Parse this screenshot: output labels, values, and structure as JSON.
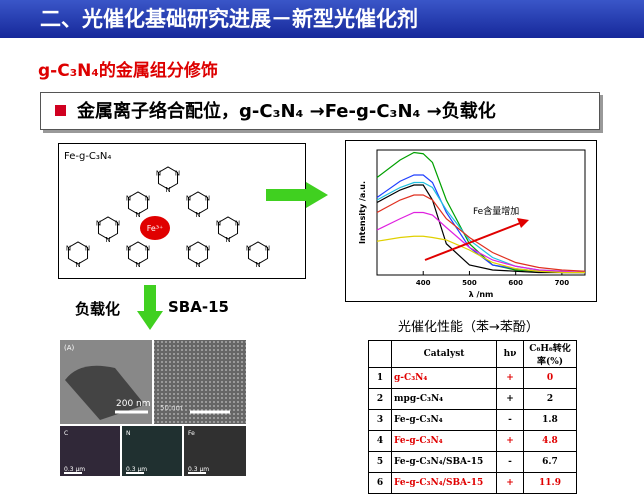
{
  "header": {
    "title": "二、光催化基础研究进展－新型光催化剂"
  },
  "subtitle": "g-C₃N₄的金属组分修饰",
  "bullet": {
    "text": "金属离子络合配位，g-C₃N₄ →Fe-g-C₃N₄ →负载化"
  },
  "structure": {
    "label": "Fe-g-C₃N₄",
    "center": "Fe³⁺",
    "atom": "N"
  },
  "step": {
    "left": "负载化",
    "right": "SBA-15"
  },
  "tem": {
    "panel": "(A)",
    "scale1": "200 nm",
    "scale2": "50 nm",
    "maps": [
      "C",
      "N",
      "Fe"
    ],
    "scale3": "0.3 μm"
  },
  "spectrum": {
    "type": "line",
    "ylabel": "Intensity /a.u.",
    "xlabel": "λ /nm",
    "annotation": "Fe含量增加",
    "x": [
      300,
      350,
      380,
      400,
      420,
      450,
      500,
      550,
      600,
      650,
      700,
      750
    ],
    "xlim": [
      300,
      750
    ],
    "ylim": [
      0,
      1
    ],
    "xticks": [
      400,
      500,
      600,
      700
    ],
    "series": [
      {
        "color": "#00a000",
        "values": [
          0.78,
          0.92,
          0.98,
          0.97,
          0.9,
          0.6,
          0.25,
          0.08,
          0.04,
          0.03,
          0.02,
          0.02
        ]
      },
      {
        "color": "#2040ff",
        "values": [
          0.62,
          0.75,
          0.8,
          0.8,
          0.74,
          0.5,
          0.22,
          0.08,
          0.05,
          0.03,
          0.02,
          0.02
        ]
      },
      {
        "color": "#20c0e0",
        "values": [
          0.6,
          0.7,
          0.74,
          0.74,
          0.7,
          0.52,
          0.28,
          0.14,
          0.07,
          0.04,
          0.03,
          0.02
        ]
      },
      {
        "color": "#000000",
        "values": [
          0.58,
          0.68,
          0.72,
          0.72,
          0.6,
          0.25,
          0.08,
          0.04,
          0.03,
          0.02,
          0.02,
          0.02
        ]
      },
      {
        "color": "#e03020",
        "values": [
          0.5,
          0.6,
          0.64,
          0.64,
          0.6,
          0.45,
          0.3,
          0.18,
          0.1,
          0.06,
          0.04,
          0.03
        ]
      },
      {
        "color": "#e020e0",
        "values": [
          0.36,
          0.45,
          0.5,
          0.5,
          0.48,
          0.38,
          0.22,
          0.12,
          0.07,
          0.04,
          0.03,
          0.02
        ]
      },
      {
        "color": "#e0d000",
        "values": [
          0.27,
          0.3,
          0.31,
          0.31,
          0.3,
          0.28,
          0.2,
          0.1,
          0.05,
          0.03,
          0.02,
          0.02
        ]
      }
    ]
  },
  "table": {
    "title": "光催化性能（苯→苯酚）",
    "header": [
      "Catalyst",
      "hν",
      "C₆H₆转化率(%)"
    ],
    "rows": [
      [
        "1",
        "g-C₃N₄",
        "+",
        0
      ],
      [
        "2",
        "mpg-C₃N₄",
        "+",
        2
      ],
      [
        "3",
        "Fe-g-C₃N₄",
        "-",
        1.8
      ],
      [
        "4",
        "Fe-g-C₃N₄",
        "+",
        4.8
      ],
      [
        "5",
        "Fe-g-C₃N₄/SBA-15",
        "-",
        6.7
      ],
      [
        "6",
        "Fe-g-C₃N₄/SBA-15",
        "+",
        11.9
      ]
    ],
    "highlight_rows": [
      0,
      3,
      5
    ],
    "highlight_color": "#e00000"
  }
}
